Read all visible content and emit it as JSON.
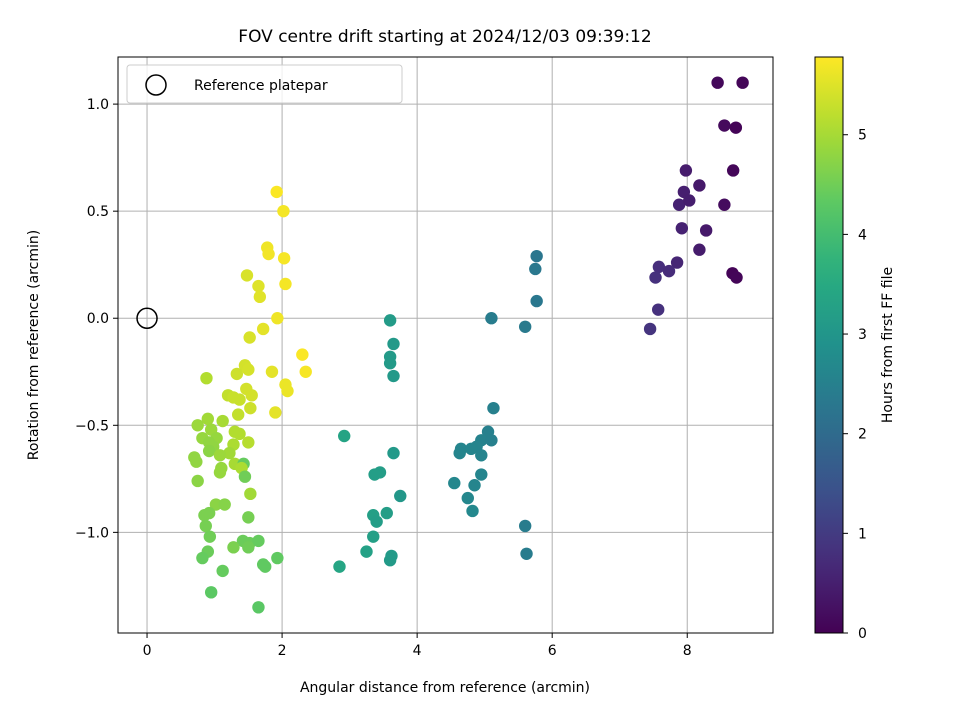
{
  "chart_data": {
    "type": "scatter",
    "title": "FOV centre drift starting at 2024/12/03 09:39:12",
    "xlabel": "Angular distance from reference (arcmin)",
    "ylabel": "Rotation from reference (arcmin)",
    "xlim": [
      -0.43,
      9.27
    ],
    "ylim": [
      -1.47,
      1.22
    ],
    "xticks": [
      0,
      2,
      4,
      6,
      8
    ],
    "yticks": [
      -1.0,
      -0.5,
      0.0,
      0.5,
      1.0
    ],
    "xtick_labels": [
      "0",
      "2",
      "4",
      "6",
      "8"
    ],
    "ytick_labels": [
      "−1.0",
      "−0.5",
      "0.0",
      "0.5",
      "1.0"
    ],
    "grid": true,
    "legend": {
      "position": "top-left",
      "entries": [
        "Reference platepar"
      ]
    },
    "reference_point": {
      "x": 0.0,
      "y": 0.0
    },
    "colorbar": {
      "label": "Hours from first FF file",
      "range": [
        0,
        5.78
      ],
      "ticks": [
        0,
        1,
        2,
        3,
        4,
        5
      ],
      "tick_labels": [
        "0",
        "1",
        "2",
        "3",
        "4",
        "5"
      ],
      "colormap": "viridis"
    },
    "points": [
      {
        "x": 8.45,
        "y": 1.1,
        "c": 0.12
      },
      {
        "x": 8.82,
        "y": 1.1,
        "c": 0.08
      },
      {
        "x": 8.55,
        "y": 0.9,
        "c": 0.15
      },
      {
        "x": 8.72,
        "y": 0.89,
        "c": 0.05
      },
      {
        "x": 7.98,
        "y": 0.69,
        "c": 0.45
      },
      {
        "x": 8.68,
        "y": 0.69,
        "c": 0.1
      },
      {
        "x": 7.95,
        "y": 0.59,
        "c": 0.5
      },
      {
        "x": 8.18,
        "y": 0.62,
        "c": 0.4
      },
      {
        "x": 7.88,
        "y": 0.53,
        "c": 0.55
      },
      {
        "x": 8.03,
        "y": 0.55,
        "c": 0.48
      },
      {
        "x": 8.55,
        "y": 0.53,
        "c": 0.18
      },
      {
        "x": 7.92,
        "y": 0.42,
        "c": 0.55
      },
      {
        "x": 8.28,
        "y": 0.41,
        "c": 0.4
      },
      {
        "x": 8.18,
        "y": 0.32,
        "c": 0.45
      },
      {
        "x": 7.85,
        "y": 0.26,
        "c": 0.6
      },
      {
        "x": 7.58,
        "y": 0.24,
        "c": 0.75
      },
      {
        "x": 7.73,
        "y": 0.22,
        "c": 0.7
      },
      {
        "x": 7.53,
        "y": 0.19,
        "c": 0.8
      },
      {
        "x": 8.67,
        "y": 0.21,
        "c": 0.05
      },
      {
        "x": 8.73,
        "y": 0.19,
        "c": 0.07
      },
      {
        "x": 7.57,
        "y": 0.04,
        "c": 0.8
      },
      {
        "x": 7.45,
        "y": -0.05,
        "c": 0.85
      },
      {
        "x": 5.77,
        "y": 0.29,
        "c": 2.25
      },
      {
        "x": 5.75,
        "y": 0.23,
        "c": 2.3
      },
      {
        "x": 5.77,
        "y": 0.08,
        "c": 2.28
      },
      {
        "x": 5.1,
        "y": 0.0,
        "c": 2.4
      },
      {
        "x": 5.6,
        "y": -0.04,
        "c": 2.35
      },
      {
        "x": 5.13,
        "y": -0.42,
        "c": 2.5
      },
      {
        "x": 5.05,
        "y": -0.53,
        "c": 2.5
      },
      {
        "x": 4.95,
        "y": -0.57,
        "c": 2.55
      },
      {
        "x": 5.1,
        "y": -0.57,
        "c": 2.5
      },
      {
        "x": 4.65,
        "y": -0.61,
        "c": 2.62
      },
      {
        "x": 4.88,
        "y": -0.6,
        "c": 2.58
      },
      {
        "x": 4.8,
        "y": -0.61,
        "c": 2.6
      },
      {
        "x": 4.63,
        "y": -0.63,
        "c": 2.62
      },
      {
        "x": 4.95,
        "y": -0.64,
        "c": 2.58
      },
      {
        "x": 4.95,
        "y": -0.73,
        "c": 2.6
      },
      {
        "x": 4.55,
        "y": -0.77,
        "c": 2.65
      },
      {
        "x": 4.85,
        "y": -0.78,
        "c": 2.62
      },
      {
        "x": 4.75,
        "y": -0.84,
        "c": 2.65
      },
      {
        "x": 4.82,
        "y": -0.9,
        "c": 2.68
      },
      {
        "x": 5.6,
        "y": -0.97,
        "c": 2.4
      },
      {
        "x": 5.62,
        "y": -1.1,
        "c": 2.4
      },
      {
        "x": 3.6,
        "y": -0.01,
        "c": 3.15
      },
      {
        "x": 3.65,
        "y": -0.12,
        "c": 3.1
      },
      {
        "x": 3.6,
        "y": -0.18,
        "c": 3.12
      },
      {
        "x": 3.6,
        "y": -0.21,
        "c": 3.12
      },
      {
        "x": 3.65,
        "y": -0.27,
        "c": 3.1
      },
      {
        "x": 2.92,
        "y": -0.55,
        "c": 3.35
      },
      {
        "x": 3.65,
        "y": -0.63,
        "c": 3.1
      },
      {
        "x": 3.45,
        "y": -0.72,
        "c": 3.2
      },
      {
        "x": 3.37,
        "y": -0.73,
        "c": 3.22
      },
      {
        "x": 3.75,
        "y": -0.83,
        "c": 3.05
      },
      {
        "x": 3.35,
        "y": -0.92,
        "c": 3.25
      },
      {
        "x": 3.55,
        "y": -0.91,
        "c": 3.18
      },
      {
        "x": 3.4,
        "y": -0.95,
        "c": 3.2
      },
      {
        "x": 3.35,
        "y": -1.02,
        "c": 3.25
      },
      {
        "x": 3.25,
        "y": -1.09,
        "c": 3.28
      },
      {
        "x": 3.62,
        "y": -1.11,
        "c": 3.12
      },
      {
        "x": 3.6,
        "y": -1.13,
        "c": 3.12
      },
      {
        "x": 2.85,
        "y": -1.16,
        "c": 3.38
      },
      {
        "x": 1.92,
        "y": 0.59,
        "c": 5.75
      },
      {
        "x": 2.02,
        "y": 0.5,
        "c": 5.7
      },
      {
        "x": 1.78,
        "y": 0.33,
        "c": 5.65
      },
      {
        "x": 1.8,
        "y": 0.3,
        "c": 5.68
      },
      {
        "x": 2.03,
        "y": 0.28,
        "c": 5.72
      },
      {
        "x": 1.48,
        "y": 0.2,
        "c": 5.45
      },
      {
        "x": 1.65,
        "y": 0.15,
        "c": 5.5
      },
      {
        "x": 2.05,
        "y": 0.16,
        "c": 5.7
      },
      {
        "x": 1.67,
        "y": 0.1,
        "c": 5.52
      },
      {
        "x": 1.93,
        "y": 0.0,
        "c": 5.65
      },
      {
        "x": 1.72,
        "y": -0.05,
        "c": 5.55
      },
      {
        "x": 1.52,
        "y": -0.09,
        "c": 5.45
      },
      {
        "x": 2.3,
        "y": -0.17,
        "c": 5.75
      },
      {
        "x": 1.45,
        "y": -0.22,
        "c": 5.4
      },
      {
        "x": 1.5,
        "y": -0.24,
        "c": 5.42
      },
      {
        "x": 1.85,
        "y": -0.25,
        "c": 5.55
      },
      {
        "x": 2.35,
        "y": -0.25,
        "c": 5.72
      },
      {
        "x": 1.33,
        "y": -0.26,
        "c": 5.35
      },
      {
        "x": 2.05,
        "y": -0.31,
        "c": 5.62
      },
      {
        "x": 2.08,
        "y": -0.34,
        "c": 5.62
      },
      {
        "x": 1.47,
        "y": -0.33,
        "c": 5.4
      },
      {
        "x": 1.55,
        "y": -0.36,
        "c": 5.4
      },
      {
        "x": 1.2,
        "y": -0.36,
        "c": 5.25
      },
      {
        "x": 1.28,
        "y": -0.37,
        "c": 5.3
      },
      {
        "x": 1.37,
        "y": -0.38,
        "c": 5.3
      },
      {
        "x": 1.53,
        "y": -0.42,
        "c": 5.35
      },
      {
        "x": 1.9,
        "y": -0.44,
        "c": 5.55
      },
      {
        "x": 1.35,
        "y": -0.45,
        "c": 5.25
      },
      {
        "x": 0.88,
        "y": -0.28,
        "c": 5.1
      },
      {
        "x": 0.9,
        "y": -0.47,
        "c": 4.95
      },
      {
        "x": 1.12,
        "y": -0.48,
        "c": 5.0
      },
      {
        "x": 0.75,
        "y": -0.5,
        "c": 4.9
      },
      {
        "x": 0.95,
        "y": -0.52,
        "c": 4.9
      },
      {
        "x": 1.3,
        "y": -0.53,
        "c": 5.1
      },
      {
        "x": 1.37,
        "y": -0.54,
        "c": 5.1
      },
      {
        "x": 0.82,
        "y": -0.56,
        "c": 4.85
      },
      {
        "x": 1.03,
        "y": -0.56,
        "c": 4.85
      },
      {
        "x": 1.5,
        "y": -0.58,
        "c": 5.15
      },
      {
        "x": 0.92,
        "y": -0.58,
        "c": 4.8
      },
      {
        "x": 0.98,
        "y": -0.6,
        "c": 4.8
      },
      {
        "x": 1.28,
        "y": -0.59,
        "c": 5.05
      },
      {
        "x": 0.92,
        "y": -0.62,
        "c": 4.75
      },
      {
        "x": 1.22,
        "y": -0.63,
        "c": 4.95
      },
      {
        "x": 1.08,
        "y": -0.64,
        "c": 4.9
      },
      {
        "x": 0.7,
        "y": -0.65,
        "c": 4.8
      },
      {
        "x": 0.73,
        "y": -0.67,
        "c": 4.8
      },
      {
        "x": 1.3,
        "y": -0.68,
        "c": 5.0
      },
      {
        "x": 1.43,
        "y": -0.68,
        "c": 4.4
      },
      {
        "x": 1.4,
        "y": -0.7,
        "c": 5.05
      },
      {
        "x": 1.1,
        "y": -0.7,
        "c": 4.85
      },
      {
        "x": 1.08,
        "y": -0.72,
        "c": 4.85
      },
      {
        "x": 1.45,
        "y": -0.74,
        "c": 4.5
      },
      {
        "x": 0.75,
        "y": -0.76,
        "c": 4.75
      },
      {
        "x": 1.53,
        "y": -0.82,
        "c": 4.95
      },
      {
        "x": 1.02,
        "y": -0.87,
        "c": 4.75
      },
      {
        "x": 1.15,
        "y": -0.87,
        "c": 4.7
      },
      {
        "x": 0.85,
        "y": -0.92,
        "c": 4.6
      },
      {
        "x": 0.92,
        "y": -0.91,
        "c": 4.6
      },
      {
        "x": 1.5,
        "y": -0.93,
        "c": 4.55
      },
      {
        "x": 0.87,
        "y": -0.97,
        "c": 4.55
      },
      {
        "x": 0.93,
        "y": -1.02,
        "c": 4.5
      },
      {
        "x": 1.42,
        "y": -1.04,
        "c": 4.45
      },
      {
        "x": 1.52,
        "y": -1.05,
        "c": 4.45
      },
      {
        "x": 1.65,
        "y": -1.04,
        "c": 4.4
      },
      {
        "x": 1.28,
        "y": -1.07,
        "c": 4.6
      },
      {
        "x": 1.5,
        "y": -1.07,
        "c": 4.5
      },
      {
        "x": 0.9,
        "y": -1.09,
        "c": 4.45
      },
      {
        "x": 0.82,
        "y": -1.12,
        "c": 4.4
      },
      {
        "x": 1.93,
        "y": -1.12,
        "c": 4.35
      },
      {
        "x": 1.72,
        "y": -1.15,
        "c": 4.35
      },
      {
        "x": 1.75,
        "y": -1.16,
        "c": 4.35
      },
      {
        "x": 1.12,
        "y": -1.18,
        "c": 4.4
      },
      {
        "x": 0.95,
        "y": -1.28,
        "c": 4.3
      },
      {
        "x": 1.65,
        "y": -1.35,
        "c": 4.28
      }
    ]
  }
}
